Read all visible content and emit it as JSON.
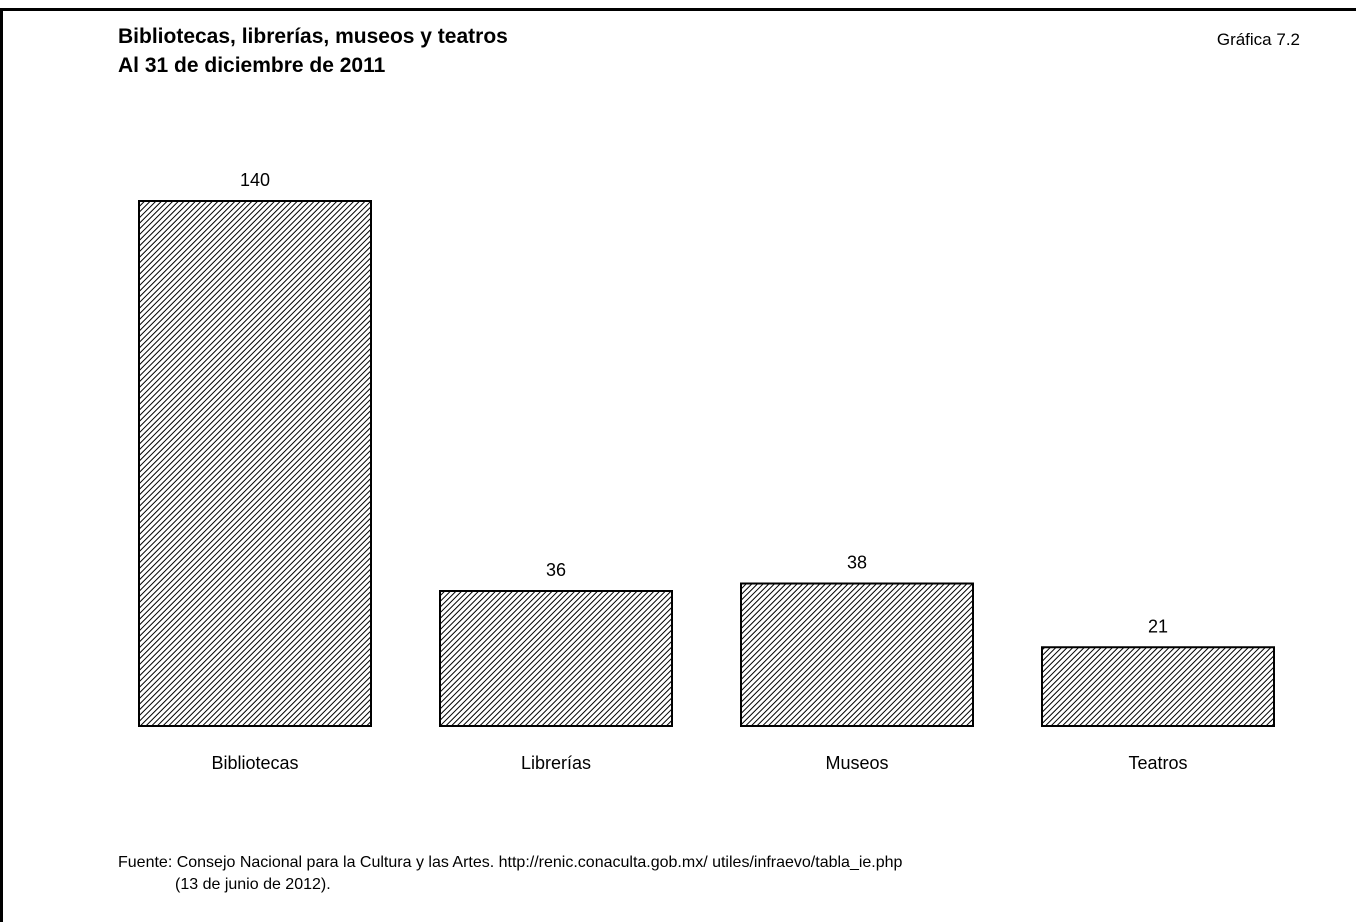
{
  "header": {
    "title_line1": "Bibliotecas, librerías, museos y teatros",
    "title_line2": "Al 31 de diciembre de 2011",
    "figure_label": "Gráfica 7.2"
  },
  "footer": {
    "source": "Fuente: Consejo Nacional para la Cultura y las Artes.  http://renic.conaculta.gob.mx/ utiles/infraevo/tabla_ie.php",
    "source_date": "(13 de junio de  2012)."
  },
  "colors": {
    "bar_fill": "#ffffff",
    "bar_hatch": "#000000",
    "bar_border": "#000000"
  },
  "chart_data": {
    "type": "bar",
    "title": "Bibliotecas, librerías, museos y teatros",
    "subtitle": "Al 31 de diciembre de 2011",
    "categories": [
      "Bibliotecas",
      "Librerías",
      "Museos",
      "Teatros"
    ],
    "values": [
      140,
      36,
      38,
      21
    ],
    "data_labels": [
      "140",
      "36",
      "38",
      "21"
    ],
    "xlabel": "",
    "ylabel": "",
    "ylim": [
      0,
      140
    ],
    "grid": false,
    "legend": "none",
    "fill_pattern": "diagonal-hatch"
  }
}
